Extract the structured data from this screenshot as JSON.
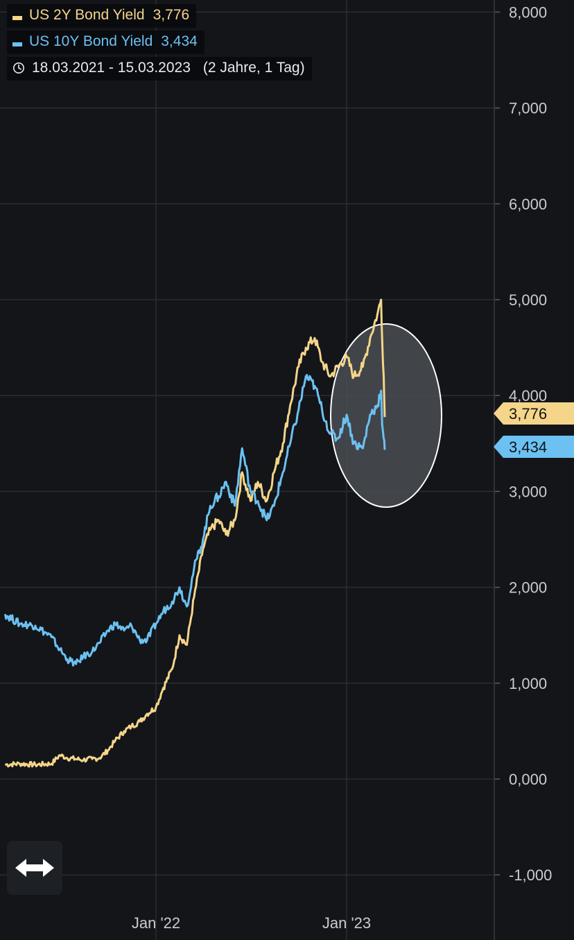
{
  "legend": {
    "series_2y_label": "US 2Y Bond Yield",
    "series_2y_value": "3,776",
    "series_10y_label": "US 10Y Bond Yield",
    "series_10y_value": "3,434",
    "date_range": "18.03.2021 - 15.03.2023",
    "date_range_extra": "(2 Jahre, 1 Tag)"
  },
  "colors": {
    "background": "#131519",
    "grid": "#2a2d33",
    "series_2y": "#f5d58a",
    "series_10y": "#6cc1f2",
    "highlight_fill": "#4a4d52",
    "highlight_stroke": "#ffffff"
  },
  "icons": {
    "clock": "clock-icon",
    "pan": "double-arrow-icon"
  },
  "chart_data": {
    "type": "line",
    "title": "",
    "xlabel": "",
    "ylabel": "",
    "ylim": [
      -1,
      8
    ],
    "y_ticks": [
      "-1,000",
      "0,000",
      "1,000",
      "2,000",
      "3,000",
      "4,000",
      "5,000",
      "6,000",
      "7,000",
      "8,000"
    ],
    "x_ticks": [
      "Jan '22",
      "Jan '23"
    ],
    "x_range": [
      "2021-03-18",
      "2023-03-15"
    ],
    "grid": true,
    "legend_position": "top-left",
    "last_value_labels": [
      "3,776",
      "3,434"
    ],
    "highlight": "ellipse around Sep 2022 - Mar 2023 drop",
    "series": [
      {
        "name": "US 2Y Bond Yield",
        "x": [
          "2021-03-18",
          "2021-04-15",
          "2021-05-15",
          "2021-06-15",
          "2021-07-01",
          "2021-07-15",
          "2021-08-15",
          "2021-09-01",
          "2021-09-15",
          "2021-10-01",
          "2021-10-15",
          "2021-11-01",
          "2021-11-15",
          "2021-12-01",
          "2021-12-15",
          "2022-01-01",
          "2022-01-15",
          "2022-02-01",
          "2022-02-15",
          "2022-03-01",
          "2022-03-15",
          "2022-04-01",
          "2022-04-15",
          "2022-05-01",
          "2022-05-15",
          "2022-06-01",
          "2022-06-15",
          "2022-07-01",
          "2022-07-15",
          "2022-08-01",
          "2022-08-15",
          "2022-09-01",
          "2022-09-15",
          "2022-10-01",
          "2022-10-15",
          "2022-11-01",
          "2022-11-15",
          "2022-12-01",
          "2022-12-15",
          "2023-01-01",
          "2023-01-15",
          "2023-02-01",
          "2023-02-15",
          "2023-03-01",
          "2023-03-08",
          "2023-03-10",
          "2023-03-13",
          "2023-03-15"
        ],
        "values": [
          0.15,
          0.16,
          0.15,
          0.16,
          0.25,
          0.22,
          0.2,
          0.21,
          0.22,
          0.3,
          0.4,
          0.5,
          0.55,
          0.6,
          0.68,
          0.75,
          0.95,
          1.15,
          1.5,
          1.4,
          1.9,
          2.4,
          2.6,
          2.7,
          2.55,
          2.7,
          3.2,
          2.9,
          3.1,
          2.9,
          3.2,
          3.5,
          3.9,
          4.3,
          4.5,
          4.6,
          4.35,
          4.2,
          4.3,
          4.4,
          4.2,
          4.3,
          4.6,
          4.85,
          5.0,
          4.6,
          4.2,
          3.776
        ]
      },
      {
        "name": "US 10Y Bond Yield",
        "x": [
          "2021-03-18",
          "2021-04-15",
          "2021-05-15",
          "2021-06-15",
          "2021-07-01",
          "2021-07-15",
          "2021-08-01",
          "2021-08-15",
          "2021-09-01",
          "2021-09-15",
          "2021-10-01",
          "2021-10-15",
          "2021-11-01",
          "2021-11-15",
          "2021-12-01",
          "2021-12-15",
          "2022-01-01",
          "2022-01-15",
          "2022-02-01",
          "2022-02-15",
          "2022-03-01",
          "2022-03-15",
          "2022-04-01",
          "2022-04-15",
          "2022-05-01",
          "2022-05-15",
          "2022-06-01",
          "2022-06-15",
          "2022-07-01",
          "2022-07-15",
          "2022-08-01",
          "2022-08-15",
          "2022-09-01",
          "2022-09-15",
          "2022-10-01",
          "2022-10-15",
          "2022-11-01",
          "2022-11-15",
          "2022-12-01",
          "2022-12-15",
          "2023-01-01",
          "2023-01-15",
          "2023-02-01",
          "2023-02-15",
          "2023-03-01",
          "2023-03-08",
          "2023-03-10",
          "2023-03-13",
          "2023-03-15"
        ],
        "values": [
          1.72,
          1.62,
          1.6,
          1.48,
          1.35,
          1.25,
          1.2,
          1.28,
          1.33,
          1.42,
          1.55,
          1.62,
          1.55,
          1.6,
          1.45,
          1.45,
          1.62,
          1.75,
          1.85,
          2.0,
          1.8,
          2.2,
          2.5,
          2.85,
          2.95,
          3.1,
          2.85,
          3.45,
          3.0,
          2.9,
          2.7,
          2.85,
          3.2,
          3.5,
          3.85,
          4.2,
          4.1,
          3.85,
          3.6,
          3.55,
          3.8,
          3.5,
          3.45,
          3.8,
          3.9,
          4.05,
          3.7,
          3.55,
          3.434
        ]
      }
    ]
  }
}
